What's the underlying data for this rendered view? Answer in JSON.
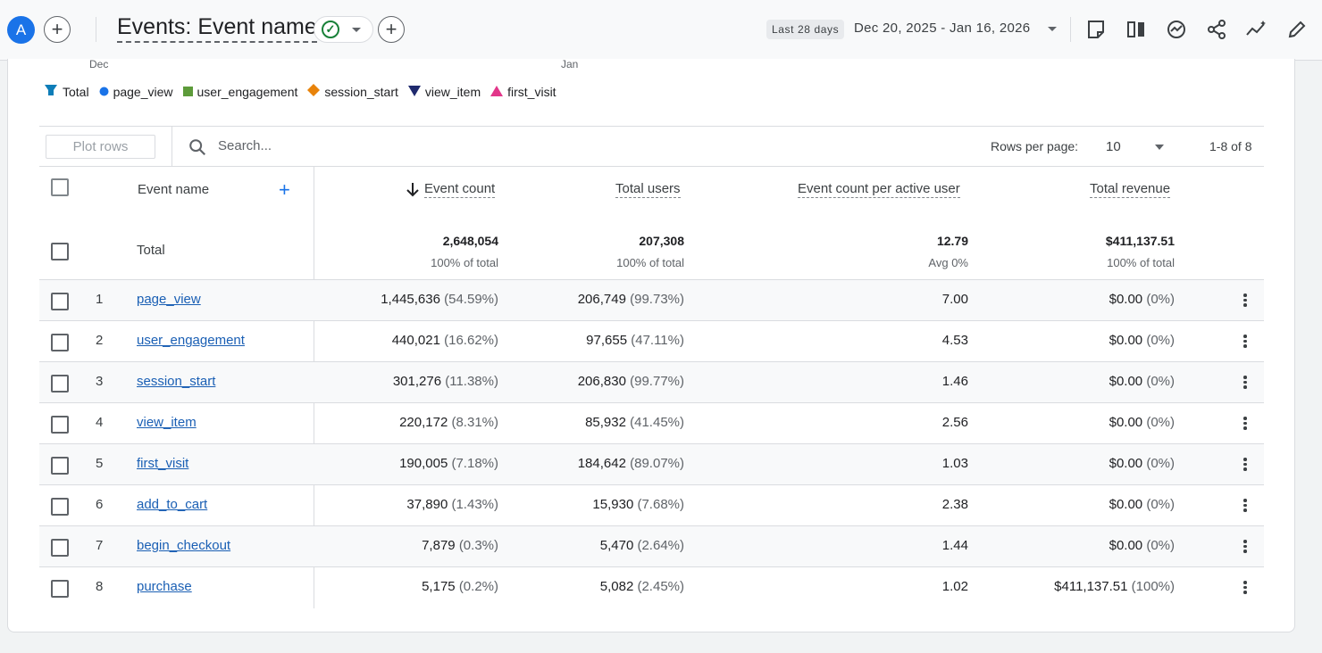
{
  "header": {
    "avatar_letter": "A",
    "title": "Events: Event name",
    "range_badge": "Last 28 days",
    "date_range": "Dec 20, 2025 - Jan 16, 2026"
  },
  "chart_axis": {
    "left_label": "Dec",
    "mid_label": "Jan"
  },
  "legend": [
    "Total",
    "page_view",
    "user_engagement",
    "session_start",
    "view_item",
    "first_visit"
  ],
  "legend_colors": [
    "#0e7db8",
    "#1a73e8",
    "#5d9b3a",
    "#e8830a",
    "#1f2a6e",
    "#e2368a"
  ],
  "toolbar": {
    "plot_rows": "Plot rows",
    "search_placeholder": "Search...",
    "rows_per_page_label": "Rows per page:",
    "rows_per_page_value": "10",
    "pager": "1-8 of 8"
  },
  "columns": {
    "dimension": "Event name",
    "metrics": [
      "Event count",
      "Total users",
      "Event count per active user",
      "Total revenue"
    ]
  },
  "totals": {
    "label": "Total",
    "values": [
      "2,648,054",
      "207,308",
      "12.79",
      "$411,137.51"
    ],
    "subs": [
      "100% of total",
      "100% of total",
      "Avg 0%",
      "100% of total"
    ]
  },
  "rows": [
    {
      "idx": "1",
      "name": "page_view",
      "ec": "1,445,636",
      "ec_pct": "(54.59%)",
      "tu": "206,749",
      "tu_pct": "(99.73%)",
      "ecpau": "7.00",
      "rev": "$0.00",
      "rev_pct": "(0%)"
    },
    {
      "idx": "2",
      "name": "user_engagement",
      "ec": "440,021",
      "ec_pct": "(16.62%)",
      "tu": "97,655",
      "tu_pct": "(47.11%)",
      "ecpau": "4.53",
      "rev": "$0.00",
      "rev_pct": "(0%)"
    },
    {
      "idx": "3",
      "name": "session_start",
      "ec": "301,276",
      "ec_pct": "(11.38%)",
      "tu": "206,830",
      "tu_pct": "(99.77%)",
      "ecpau": "1.46",
      "rev": "$0.00",
      "rev_pct": "(0%)"
    },
    {
      "idx": "4",
      "name": "view_item",
      "ec": "220,172",
      "ec_pct": "(8.31%)",
      "tu": "85,932",
      "tu_pct": "(41.45%)",
      "ecpau": "2.56",
      "rev": "$0.00",
      "rev_pct": "(0%)"
    },
    {
      "idx": "5",
      "name": "first_visit",
      "ec": "190,005",
      "ec_pct": "(7.18%)",
      "tu": "184,642",
      "tu_pct": "(89.07%)",
      "ecpau": "1.03",
      "rev": "$0.00",
      "rev_pct": "(0%)"
    },
    {
      "idx": "6",
      "name": "add_to_cart",
      "ec": "37,890",
      "ec_pct": "(1.43%)",
      "tu": "15,930",
      "tu_pct": "(7.68%)",
      "ecpau": "2.38",
      "rev": "$0.00",
      "rev_pct": "(0%)"
    },
    {
      "idx": "7",
      "name": "begin_checkout",
      "ec": "7,879",
      "ec_pct": "(0.3%)",
      "tu": "5,470",
      "tu_pct": "(2.64%)",
      "ecpau": "1.44",
      "rev": "$0.00",
      "rev_pct": "(0%)"
    },
    {
      "idx": "8",
      "name": "purchase",
      "ec": "5,175",
      "ec_pct": "(0.2%)",
      "tu": "5,082",
      "tu_pct": "(2.45%)",
      "ecpau": "1.02",
      "rev": "$411,137.51",
      "rev_pct": "(100%)"
    }
  ]
}
